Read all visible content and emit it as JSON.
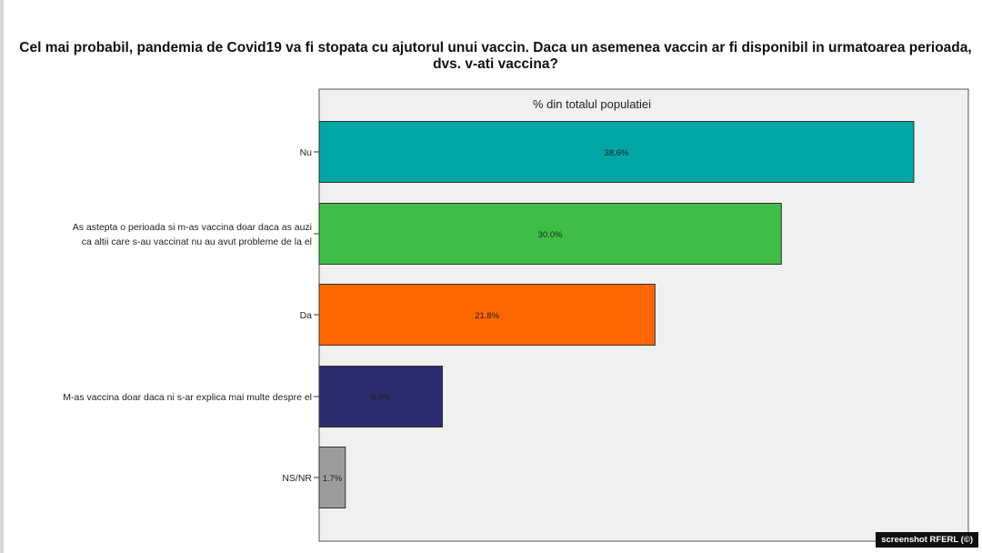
{
  "title_line1": "Cel mai probabil, pandemia de Covid19 va fi stopata cu ajutorul unui vaccin. Daca un asemenea vaccin ar fi disponibil in urmatoarea perioada,",
  "title_line2": "dvs. v-ati vaccina?",
  "watermark": "screenshot RFERL (©)",
  "chart_data": {
    "type": "bar",
    "orientation": "horizontal",
    "panel_title": "% din totalul populatiei",
    "categories": [
      [
        "Nu"
      ],
      [
        "As astepta o perioada si m-as vaccina  doar daca as auzi",
        "ca altii care s-au vaccinat nu au avut probleme de la el"
      ],
      [
        "Da"
      ],
      [
        "M-as vaccina doar daca ni s-ar explica mai multe despre el"
      ],
      [
        "NS/NR"
      ]
    ],
    "values": [
      38.6,
      30.0,
      21.8,
      8.0,
      1.7
    ],
    "value_labels": [
      "38.6%",
      "30.0%",
      "21.8%",
      "8.0%",
      "1.7%"
    ],
    "colors": [
      "#00a6a6",
      "#3ebe46",
      "#ff6600",
      "#2b2b70",
      "#9c9c9c"
    ],
    "xlim": [
      0,
      40
    ],
    "grid": false,
    "legend": "none"
  }
}
